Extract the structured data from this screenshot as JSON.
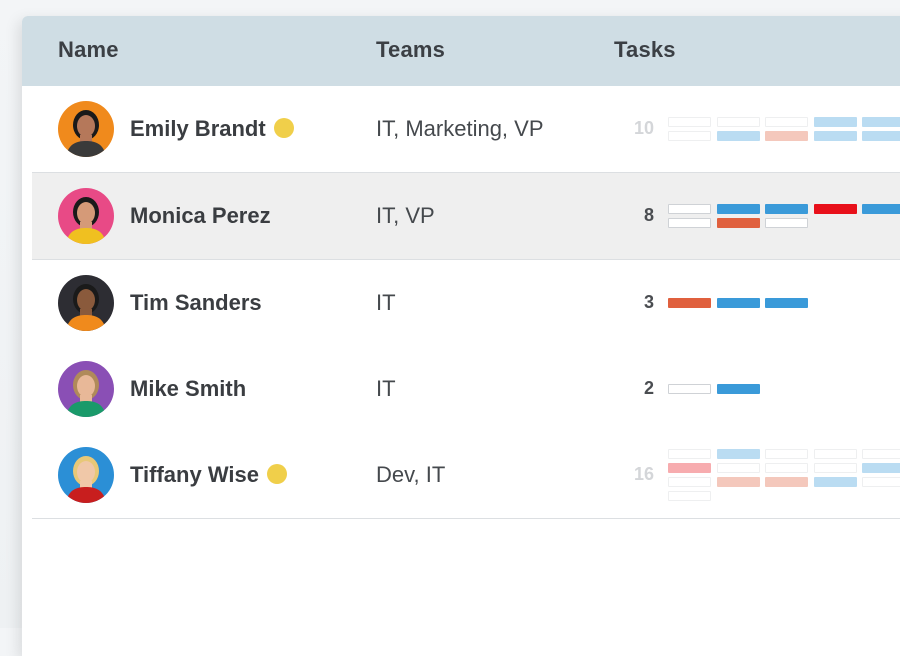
{
  "header": {
    "name": "Name",
    "teams": "Teams",
    "tasks": "Tasks"
  },
  "colors": {
    "blue": "#3a9ad9",
    "orange": "#e0603e",
    "red": "#e8101a",
    "empty_border": "#cfd2d6",
    "status_dot": "#f0cf4a"
  },
  "rows": [
    {
      "name": "Emily Brandt",
      "online": true,
      "teams": "IT, Marketing, VP",
      "task_count": "10",
      "faded": true,
      "avatar_bg": "#f08a1c",
      "task_grid": [
        [
          "empty",
          "empty",
          "empty",
          "blue",
          "blue"
        ],
        [
          "empty",
          "blue",
          "orange",
          "blue",
          "blue"
        ]
      ]
    },
    {
      "name": "Monica Perez",
      "online": false,
      "teams": "IT, VP",
      "task_count": "8",
      "faded": false,
      "avatar_bg": "#e84a86",
      "selected": true,
      "task_grid": [
        [
          "empty",
          "blue",
          "blue",
          "red",
          "blue"
        ],
        [
          "empty",
          "orange",
          "empty"
        ]
      ]
    },
    {
      "name": "Tim Sanders",
      "online": false,
      "teams": "IT",
      "task_count": "3",
      "faded": false,
      "avatar_bg": "#2d2d33",
      "task_grid": [
        [
          "orange",
          "blue",
          "blue"
        ]
      ]
    },
    {
      "name": "Mike Smith",
      "online": false,
      "teams": "IT",
      "task_count": "2",
      "faded": false,
      "avatar_bg": "#8a4fb5",
      "task_grid": [
        [
          "empty",
          "blue"
        ]
      ]
    },
    {
      "name": "Tiffany Wise",
      "online": true,
      "teams": "Dev, IT",
      "task_count": "16",
      "faded": true,
      "avatar_bg": "#2b8fd6",
      "task_grid": [
        [
          "empty",
          "blue",
          "empty",
          "empty",
          "empty"
        ],
        [
          "red",
          "empty",
          "empty",
          "empty",
          "blue"
        ],
        [
          "empty",
          "orange",
          "orange",
          "blue",
          "empty"
        ],
        [
          "empty"
        ]
      ]
    }
  ]
}
